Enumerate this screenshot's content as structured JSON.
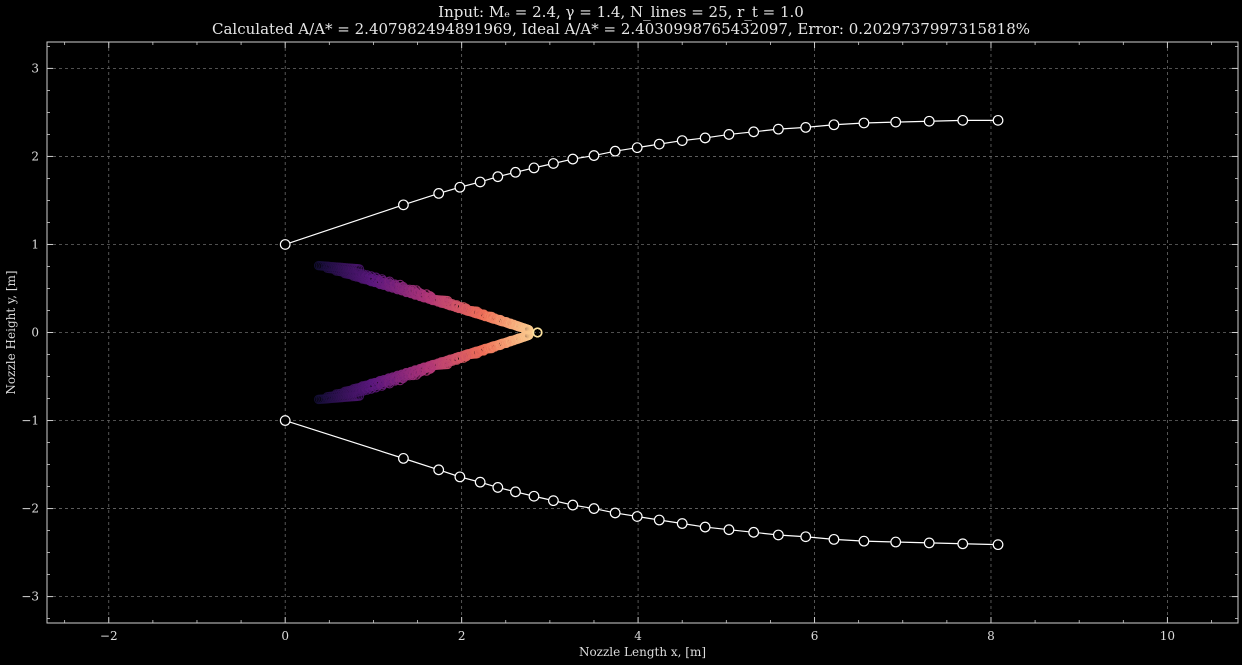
{
  "chart_data": {
    "type": "scatter",
    "title_line1": "Input: Mₑ = 2.4, γ = 1.4, N_lines = 25, r_t = 1.0",
    "title_line2": "Calculated A/A* = 2.407982494891969, Ideal A/A* = 2.4030998765432097, Error: 0.2029737997315818%",
    "xlabel": "Nozzle Length x, [m]",
    "ylabel": "Nozzle Height y, [m]",
    "xlim": [
      -2.7,
      10.8
    ],
    "ylim": [
      -3.3,
      3.3
    ],
    "xticks": [
      -2,
      0,
      2,
      4,
      6,
      8,
      10
    ],
    "yticks": [
      -3,
      -2,
      -1,
      0,
      1,
      2,
      3
    ],
    "grid": true,
    "series": [
      {
        "role": "upper-wall",
        "color": "#ffffff",
        "x": [
          0,
          1.34,
          1.74,
          1.98,
          2.21,
          2.41,
          2.61,
          2.82,
          3.04,
          3.26,
          3.5,
          3.74,
          3.99,
          4.24,
          4.5,
          4.76,
          5.03,
          5.31,
          5.59,
          5.9,
          6.22,
          6.56,
          6.92,
          7.3,
          7.68,
          8.08
        ],
        "y": [
          1.0,
          1.45,
          1.58,
          1.65,
          1.71,
          1.77,
          1.82,
          1.87,
          1.92,
          1.97,
          2.01,
          2.06,
          2.1,
          2.14,
          2.18,
          2.21,
          2.25,
          2.28,
          2.31,
          2.33,
          2.36,
          2.38,
          2.39,
          2.4,
          2.41,
          2.41
        ]
      },
      {
        "role": "lower-wall",
        "color": "#ffffff",
        "x": [
          0,
          1.34,
          1.74,
          1.98,
          2.21,
          2.41,
          2.61,
          2.82,
          3.04,
          3.26,
          3.5,
          3.74,
          3.99,
          4.24,
          4.5,
          4.76,
          5.03,
          5.31,
          5.59,
          5.9,
          6.22,
          6.56,
          6.92,
          7.3,
          7.68,
          8.08
        ],
        "y": [
          -1.0,
          -1.43,
          -1.56,
          -1.64,
          -1.7,
          -1.76,
          -1.81,
          -1.86,
          -1.91,
          -1.96,
          -2.0,
          -2.05,
          -2.09,
          -2.13,
          -2.17,
          -2.21,
          -2.24,
          -2.27,
          -2.3,
          -2.32,
          -2.35,
          -2.37,
          -2.38,
          -2.39,
          -2.4,
          -2.41
        ]
      },
      {
        "role": "characteristic-mesh",
        "colormap": "magma",
        "n_lines": 25,
        "x_start": 0.38,
        "y_start": 0.76,
        "x_end": 2.86,
        "y_end": 0.0
      }
    ]
  }
}
